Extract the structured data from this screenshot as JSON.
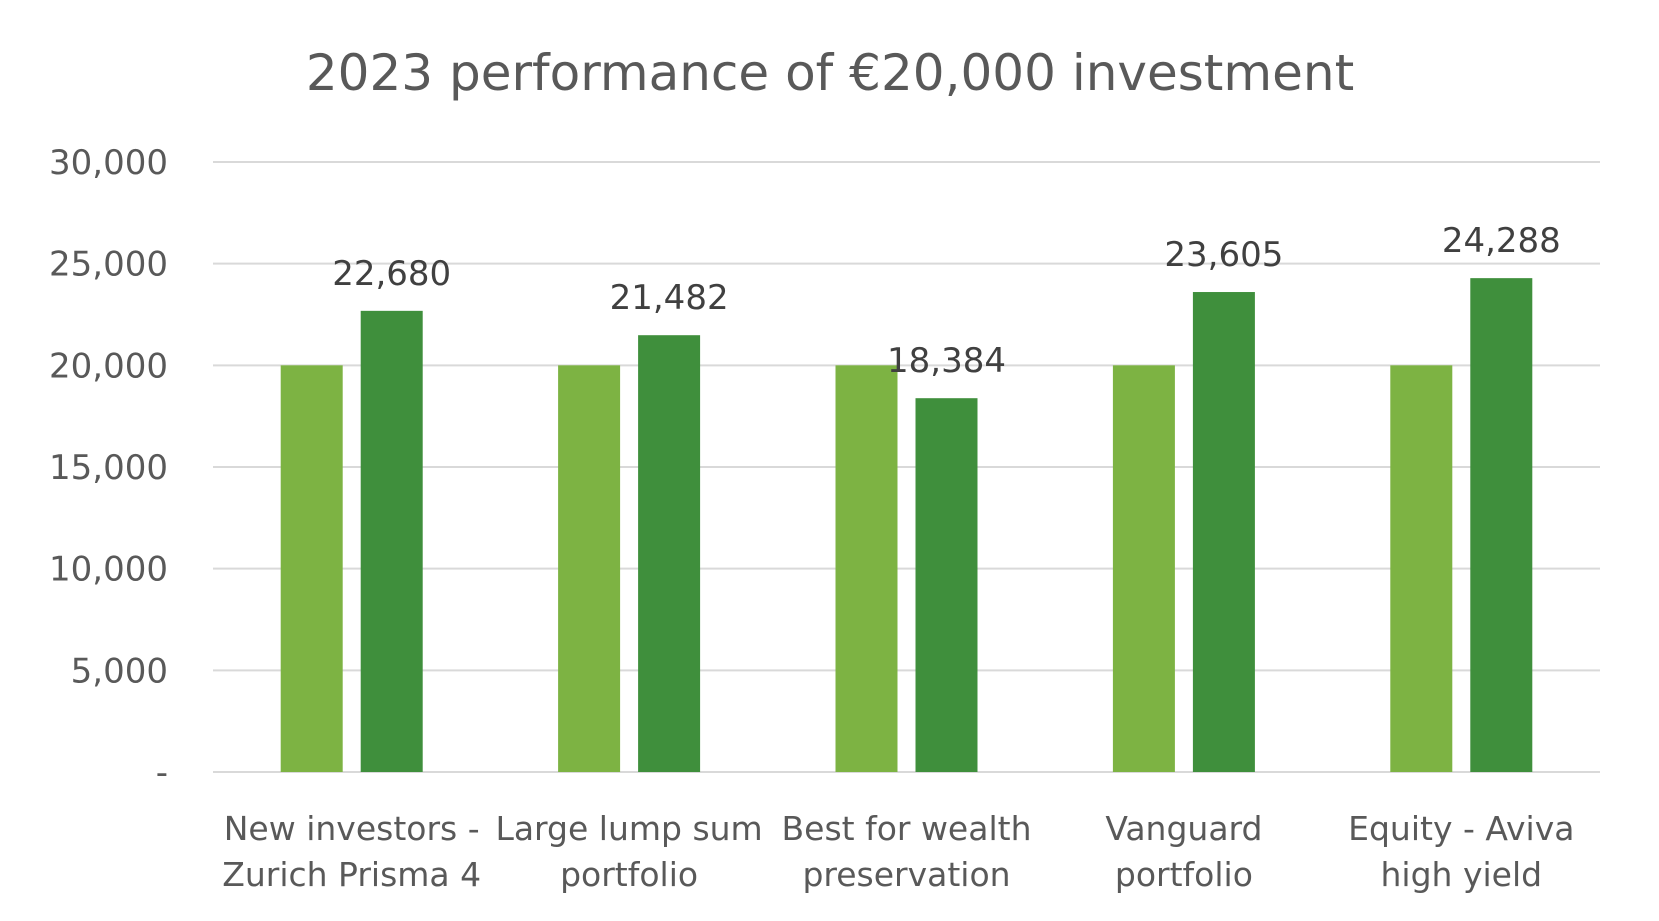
{
  "chart_data": {
    "type": "bar",
    "title": "2023 performance of €20,000 investment",
    "xlabel": "",
    "ylabel": "",
    "ylim": [
      0,
      30000
    ],
    "yticks": [
      0,
      5000,
      10000,
      15000,
      20000,
      25000,
      30000
    ],
    "ytick_labels": [
      "-",
      "5,000",
      "10,000",
      "15,000",
      "20,000",
      "25,000",
      "30,000"
    ],
    "grid": true,
    "legend": "none",
    "categories": [
      [
        "New investors -",
        "Zurich Prisma 4"
      ],
      [
        "Large lump sum",
        "portfolio"
      ],
      [
        "Best for wealth",
        "preservation"
      ],
      [
        "Vanguard",
        "portfolio"
      ],
      [
        "Equity - Aviva",
        "high yield"
      ]
    ],
    "series": [
      {
        "values": [
          20000,
          20000,
          20000,
          20000,
          20000
        ],
        "color": "#7db343",
        "data_labels": false
      },
      {
        "values": [
          22680,
          21482,
          18384,
          23605,
          24288
        ],
        "color": "#3f8f3c",
        "data_labels": true,
        "labels": [
          "22,680",
          "21,482",
          "18,384",
          "23,605",
          "24,288"
        ]
      }
    ]
  }
}
